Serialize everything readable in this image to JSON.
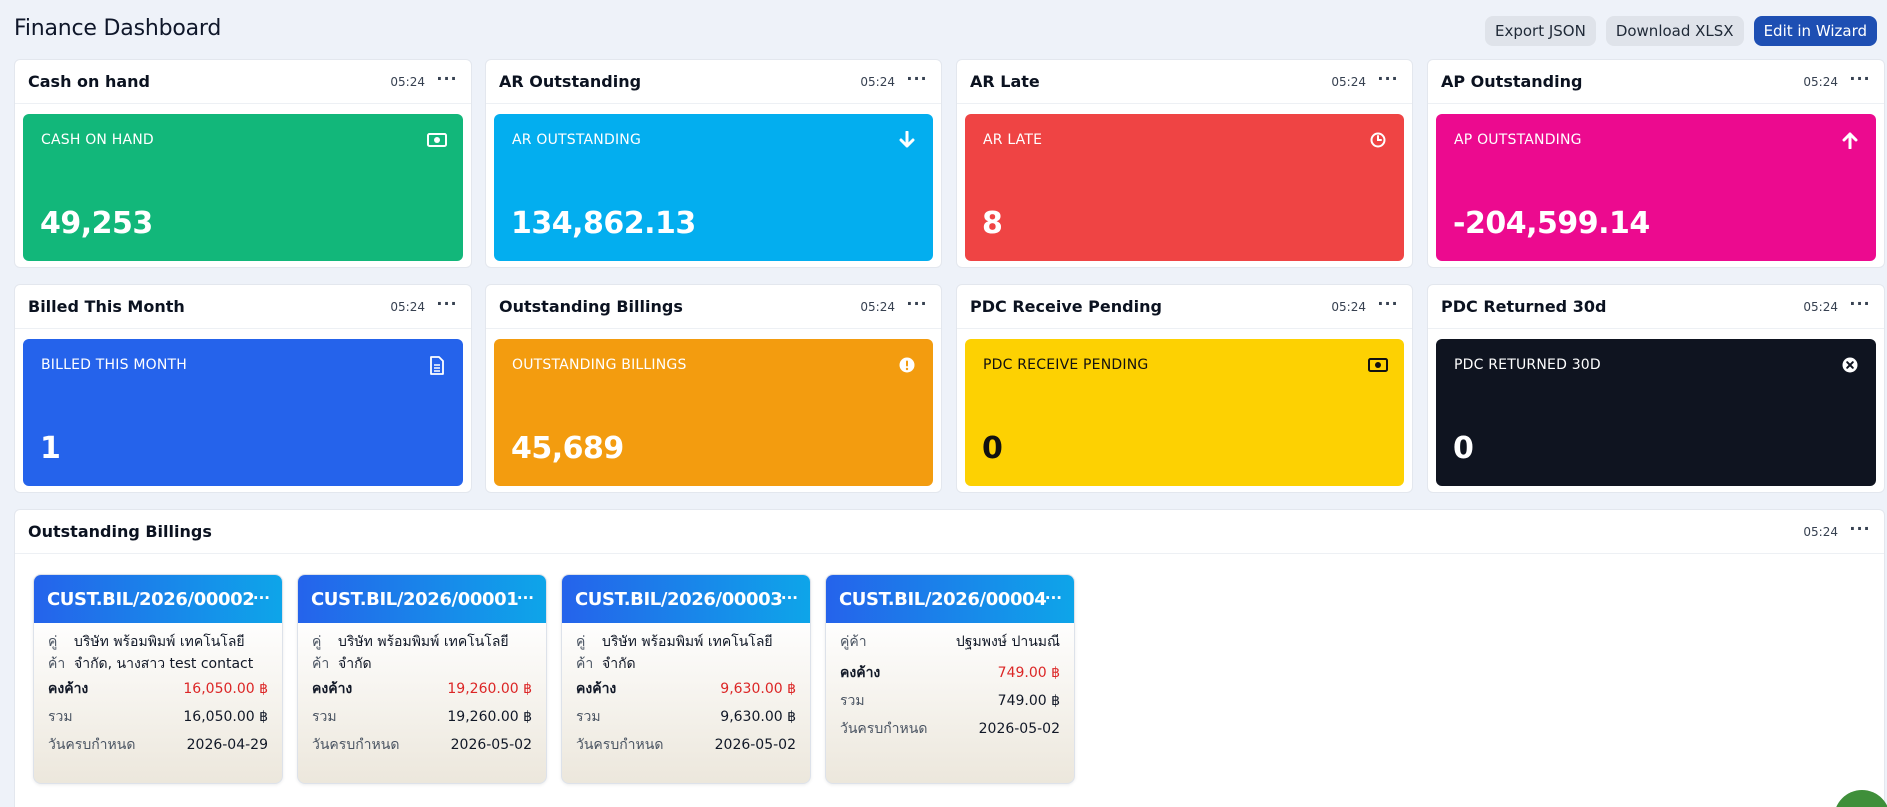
{
  "page": {
    "title": "Finance Dashboard",
    "actions": [
      "Export JSON",
      "Download XLSX",
      "Edit in Wizard"
    ]
  },
  "widgets": [
    {
      "title": "Cash on hand",
      "time": "05:24",
      "label": "CASH ON HAND",
      "value": "49,253",
      "color": "#12b77a",
      "text_color": "#ffffff",
      "icon": "cash-icon"
    },
    {
      "title": "AR Outstanding",
      "time": "05:24",
      "label": "AR OUTSTANDING",
      "value": "134,862.13",
      "color": "#03aeef",
      "text_color": "#ffffff",
      "icon": "arrow-down-icon"
    },
    {
      "title": "AR Late",
      "time": "05:24",
      "label": "AR LATE",
      "value": "8",
      "color": "#ef4444",
      "text_color": "#ffffff",
      "icon": "clock-icon"
    },
    {
      "title": "AP Outstanding",
      "time": "05:24",
      "label": "AP OUTSTANDING",
      "value": "-204,599.14",
      "color": "#ec0a8f",
      "text_color": "#ffffff",
      "icon": "arrow-up-icon"
    },
    {
      "title": "Billed This Month",
      "time": "05:24",
      "label": "BILLED THIS MONTH",
      "value": "1",
      "color": "#2563eb",
      "text_color": "#ffffff",
      "icon": "document-icon"
    },
    {
      "title": "Outstanding Billings",
      "time": "05:24",
      "label": "OUTSTANDING BILLINGS",
      "value": "45,689",
      "color": "#f39c0f",
      "text_color": "#ffffff",
      "icon": "alert-icon"
    },
    {
      "title": "PDC Receive Pending",
      "time": "05:24",
      "label": "PDC RECEIVE PENDING",
      "value": "0",
      "color": "#fdd102",
      "text_color": "#111111",
      "icon": "cash-icon"
    },
    {
      "title": "PDC Returned 30d",
      "time": "05:24",
      "label": "PDC RETURNED 30D",
      "value": "0",
      "color": "#0f1420",
      "text_color": "#ffffff",
      "icon": "close-circle-icon"
    }
  ],
  "billings": {
    "title": "Outstanding Billings",
    "time": "05:24",
    "labels": {
      "customer": "คู่ค้า",
      "customer_split": [
        "คู่",
        "ค้า"
      ],
      "outstanding": "คงค้าง",
      "total": "รวม",
      "due": "วันครบกำหนด"
    },
    "cards": [
      {
        "no": "CUST.BIL/2026/00002",
        "customer": "บริษัท พร้อมพิมพ์ เทคโนโลยี จำกัด, นางสาว test contact",
        "outstanding": "16,050.00 ฿",
        "total": "16,050.00 ฿",
        "due": "2026-04-29"
      },
      {
        "no": "CUST.BIL/2026/00001",
        "customer": "บริษัท พร้อมพิมพ์ เทคโนโลยี จำกัด",
        "outstanding": "19,260.00 ฿",
        "total": "19,260.00 ฿",
        "due": "2026-05-02"
      },
      {
        "no": "CUST.BIL/2026/00003",
        "customer": "บริษัท พร้อมพิมพ์ เทคโนโลยี จำกัด",
        "outstanding": "9,630.00 ฿",
        "total": "9,630.00 ฿",
        "due": "2026-05-02"
      },
      {
        "no": "CUST.BIL/2026/00004",
        "customer": "ปฐมพงษ์ ปานมณี",
        "outstanding": "749.00 ฿",
        "total": "749.00 ฿",
        "due": "2026-05-02"
      }
    ]
  }
}
